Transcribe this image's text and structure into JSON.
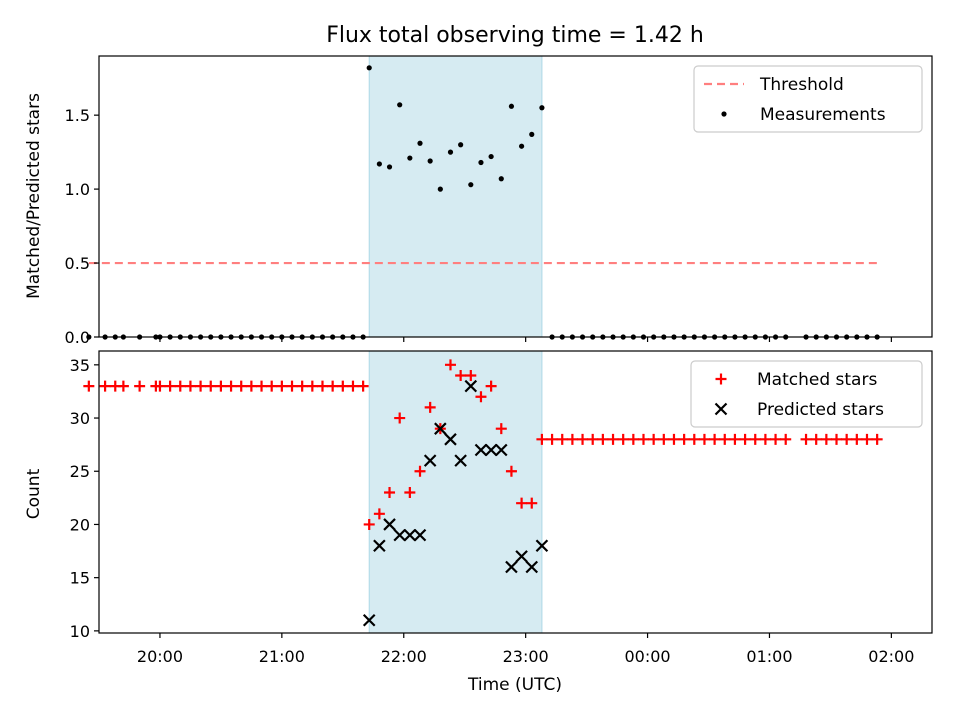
{
  "chart_data": [
    {
      "type": "scatter",
      "title": "Flux total observing time = 1.42 h",
      "xlabel": "",
      "ylabel": "Matched/Predicted stars",
      "ylim": [
        0,
        1.9
      ],
      "yticks": [
        0.0,
        0.5,
        1.0,
        1.5
      ],
      "ytick_labels": [
        "0.0",
        "0.5",
        "1.0",
        "1.5"
      ],
      "x_axis": "time",
      "xlim": [
        "19:30",
        "02:20"
      ],
      "highlight_span": [
        "21:43",
        "23:08"
      ],
      "highlight_color": "#add8e6",
      "legend_position": "upper right",
      "series": [
        {
          "name": "Threshold",
          "style": "dashed-line",
          "color": "#ff7f7f",
          "x": [
            "19:25",
            "01:55"
          ],
          "y": [
            0.5,
            0.5
          ]
        },
        {
          "name": "Measurements",
          "style": "dot",
          "color": "#000000",
          "x": [
            "19:25",
            "19:33",
            "19:38",
            "19:42",
            "19:50",
            "19:58",
            "20:00",
            "20:05",
            "20:10",
            "20:15",
            "20:20",
            "20:25",
            "20:30",
            "20:35",
            "20:40",
            "20:45",
            "20:50",
            "20:55",
            "21:00",
            "21:05",
            "21:10",
            "21:15",
            "21:20",
            "21:25",
            "21:30",
            "21:35",
            "21:40",
            "21:43",
            "21:48",
            "21:53",
            "21:58",
            "22:03",
            "22:08",
            "22:13",
            "22:18",
            "22:23",
            "22:28",
            "22:33",
            "22:38",
            "22:43",
            "22:48",
            "22:53",
            "22:58",
            "23:03",
            "23:08",
            "23:13",
            "23:18",
            "23:23",
            "23:28",
            "23:33",
            "23:38",
            "23:43",
            "23:48",
            "23:53",
            "23:58",
            "00:03",
            "00:08",
            "00:13",
            "00:18",
            "00:23",
            "00:28",
            "00:33",
            "00:38",
            "00:43",
            "00:48",
            "00:53",
            "00:58",
            "01:03",
            "01:08",
            "01:18",
            "01:23",
            "01:28",
            "01:33",
            "01:38",
            "01:43",
            "01:48",
            "01:53"
          ],
          "y": [
            0,
            0,
            0,
            0,
            0,
            0,
            0,
            0,
            0,
            0,
            0,
            0,
            0,
            0,
            0,
            0,
            0,
            0,
            0,
            0,
            0,
            0,
            0,
            0,
            0,
            0,
            0,
            1.82,
            1.17,
            1.15,
            1.57,
            1.21,
            1.31,
            1.19,
            1.0,
            1.25,
            1.3,
            1.03,
            1.18,
            1.22,
            1.07,
            1.56,
            1.29,
            1.37,
            1.55,
            0,
            0,
            0,
            0,
            0,
            0,
            0,
            0,
            0,
            0,
            0,
            0,
            0,
            0,
            0,
            0,
            0,
            0,
            0,
            0,
            0,
            0,
            0,
            0,
            0,
            0,
            0,
            0,
            0,
            0,
            0,
            0
          ]
        }
      ]
    },
    {
      "type": "scatter",
      "title": "",
      "xlabel": "Time (UTC)",
      "ylabel": "Count",
      "ylim": [
        9.8,
        36.3
      ],
      "yticks": [
        10,
        15,
        20,
        25,
        30,
        35
      ],
      "ytick_labels": [
        "10",
        "15",
        "20",
        "25",
        "30",
        "35"
      ],
      "x_axis": "time",
      "xlim": [
        "19:30",
        "02:20"
      ],
      "xticks": [
        "20:00",
        "21:00",
        "22:00",
        "23:00",
        "00:00",
        "01:00",
        "02:00"
      ],
      "highlight_span": [
        "21:43",
        "23:08"
      ],
      "highlight_color": "#add8e6",
      "legend_position": "upper right",
      "series": [
        {
          "name": "Matched stars",
          "style": "plus",
          "color": "#ff0000",
          "x": [
            "19:25",
            "19:33",
            "19:38",
            "19:42",
            "19:50",
            "19:58",
            "20:00",
            "20:05",
            "20:10",
            "20:15",
            "20:20",
            "20:25",
            "20:30",
            "20:35",
            "20:40",
            "20:45",
            "20:50",
            "20:55",
            "21:00",
            "21:05",
            "21:10",
            "21:15",
            "21:20",
            "21:25",
            "21:30",
            "21:35",
            "21:40",
            "21:43",
            "21:48",
            "21:53",
            "21:58",
            "22:03",
            "22:08",
            "22:13",
            "22:18",
            "22:23",
            "22:28",
            "22:33",
            "22:38",
            "22:43",
            "22:48",
            "22:53",
            "22:58",
            "23:03",
            "23:08",
            "23:13",
            "23:18",
            "23:23",
            "23:28",
            "23:33",
            "23:38",
            "23:43",
            "23:48",
            "23:53",
            "23:58",
            "00:03",
            "00:08",
            "00:13",
            "00:18",
            "00:23",
            "00:28",
            "00:33",
            "00:38",
            "00:43",
            "00:48",
            "00:53",
            "00:58",
            "01:03",
            "01:08",
            "01:18",
            "01:23",
            "01:28",
            "01:33",
            "01:38",
            "01:43",
            "01:48",
            "01:53"
          ],
          "y": [
            33,
            33,
            33,
            33,
            33,
            33,
            33,
            33,
            33,
            33,
            33,
            33,
            33,
            33,
            33,
            33,
            33,
            33,
            33,
            33,
            33,
            33,
            33,
            33,
            33,
            33,
            33,
            20,
            21,
            23,
            30,
            23,
            25,
            31,
            29,
            35,
            34,
            34,
            32,
            33,
            29,
            25,
            22,
            22,
            28,
            28,
            28,
            28,
            28,
            28,
            28,
            28,
            28,
            28,
            28,
            28,
            28,
            28,
            28,
            28,
            28,
            28,
            28,
            28,
            28,
            28,
            28,
            28,
            28,
            28,
            28,
            28,
            28,
            28,
            28,
            28,
            28
          ]
        },
        {
          "name": "Predicted stars",
          "style": "x",
          "color": "#000000",
          "x": [
            "21:43",
            "21:48",
            "21:53",
            "21:58",
            "22:03",
            "22:08",
            "22:13",
            "22:18",
            "22:23",
            "22:28",
            "22:33",
            "22:38",
            "22:43",
            "22:48",
            "22:53",
            "22:58",
            "23:03",
            "23:08"
          ],
          "y": [
            11,
            18,
            20,
            19,
            19,
            19,
            26,
            29,
            28,
            26,
            33,
            27,
            27,
            27,
            16,
            17,
            16,
            18
          ]
        }
      ]
    }
  ]
}
